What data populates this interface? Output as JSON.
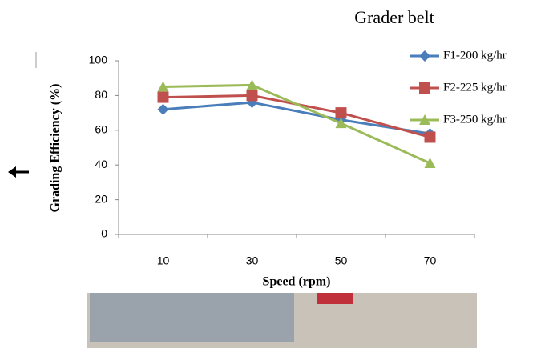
{
  "header": "Grader belt",
  "chart_data": {
    "type": "line",
    "x_label": "Speed (rpm)",
    "y_label": "Grading Efficiency (%)",
    "categories": [
      "10",
      "30",
      "50",
      "70"
    ],
    "series": [
      {
        "name": "F1-200 kg/hr",
        "color": "#4a7ebb",
        "marker": "diamond",
        "values": [
          72,
          76,
          66,
          58
        ]
      },
      {
        "name": "F2-225 kg/hr",
        "color": "#c0504d",
        "marker": "square",
        "values": [
          79,
          80,
          70,
          56
        ]
      },
      {
        "name": "F3-250 kg/hr",
        "color": "#9bbb59",
        "marker": "triangle",
        "values": [
          85,
          86,
          64,
          41
        ]
      }
    ],
    "ylim": [
      0,
      100
    ],
    "yticks": [
      0,
      20,
      40,
      60,
      80,
      100
    ],
    "grid": false
  }
}
